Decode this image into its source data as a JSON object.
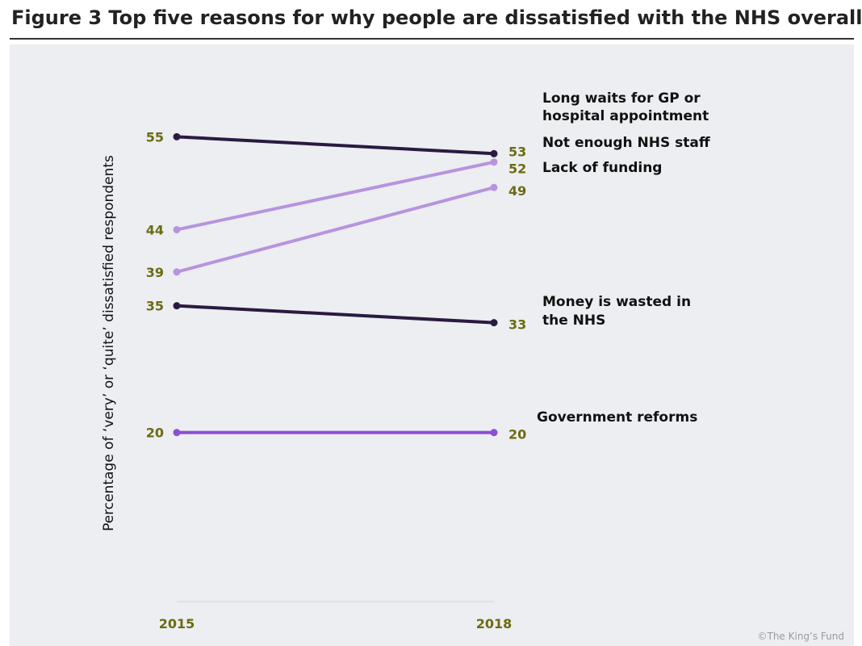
{
  "page": {
    "title": "Figure 3 Top five reasons for why people are dissatisfied with the NHS overall",
    "credit": "©The King’s Fund"
  },
  "colors": {
    "background": "#eceef1",
    "dark": "#2a1a40",
    "light": "#b794de",
    "medium": "#8b4fd1",
    "value_label": "#6b6b12",
    "category_label": "#111111"
  },
  "chart_data": {
    "type": "line",
    "title": "Figure 3 Top five reasons for why people are dissatisfied with the NHS overall",
    "ylabel": "Percentage of ‘very’ or ‘quite’ dissatisfied respondents",
    "xlabel": "",
    "categories": [
      "2015",
      "2018"
    ],
    "ylim": [
      0,
      60
    ],
    "grid": false,
    "legend": "direct labels at right",
    "series": [
      {
        "name": "Long waits for GP or hospital appointment",
        "label_lines": [
          "Long waits for GP or",
          "hospital appointment"
        ],
        "values": [
          55,
          53
        ],
        "color": "#2a1a40"
      },
      {
        "name": "Not enough NHS staff",
        "label_lines": [
          "Not enough NHS staff"
        ],
        "values": [
          44,
          52
        ],
        "color": "#b794de"
      },
      {
        "name": "Lack of funding",
        "label_lines": [
          "Lack of funding"
        ],
        "values": [
          39,
          49
        ],
        "color": "#b794de"
      },
      {
        "name": "Money is wasted in the NHS",
        "label_lines": [
          "Money is wasted in",
          "the NHS"
        ],
        "values": [
          35,
          33
        ],
        "color": "#2a1a40"
      },
      {
        "name": "Government reforms",
        "label_lines": [
          "Government reforms"
        ],
        "values": [
          20,
          20
        ],
        "color": "#8b4fd1"
      }
    ]
  }
}
